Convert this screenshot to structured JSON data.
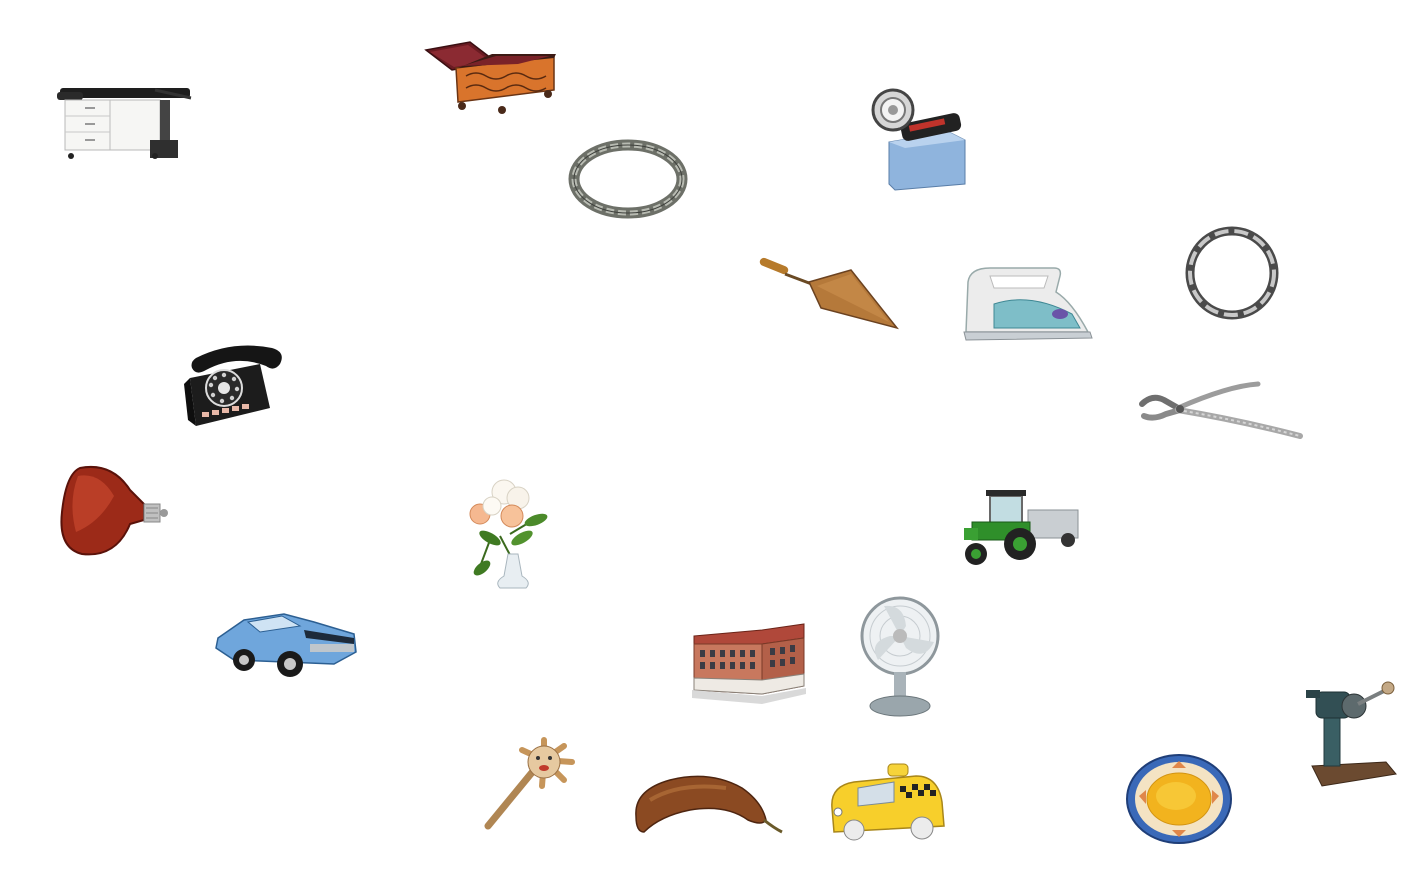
{
  "canvas": {
    "background": "#ffffff"
  },
  "objects": [
    {
      "id": "examination-table",
      "icon": "examination-table-icon"
    },
    {
      "id": "ornate-chest",
      "icon": "ornate-chest-icon"
    },
    {
      "id": "chain-bracelet",
      "icon": "chain-bracelet-icon"
    },
    {
      "id": "slide-projector",
      "icon": "slide-projector-icon"
    },
    {
      "id": "trowel",
      "icon": "trowel-icon"
    },
    {
      "id": "clothes-iron",
      "icon": "clothes-iron-icon"
    },
    {
      "id": "silver-ring-chain",
      "icon": "silver-ring-chain-icon"
    },
    {
      "id": "rotary-telephone",
      "icon": "rotary-telephone-icon"
    },
    {
      "id": "dental-pliers",
      "icon": "dental-pliers-icon"
    },
    {
      "id": "red-heat-lamp-bulb",
      "icon": "red-heat-lamp-bulb-icon"
    },
    {
      "id": "flower-vase",
      "icon": "flower-vase-icon"
    },
    {
      "id": "green-tractor",
      "icon": "green-tractor-icon"
    },
    {
      "id": "blue-muscle-car",
      "icon": "blue-muscle-car-icon"
    },
    {
      "id": "building-model",
      "icon": "building-model-icon"
    },
    {
      "id": "desk-fan",
      "icon": "desk-fan-icon"
    },
    {
      "id": "meat-grinder",
      "icon": "meat-grinder-icon"
    },
    {
      "id": "wooden-rattle",
      "icon": "wooden-rattle-icon"
    },
    {
      "id": "red-banana",
      "icon": "red-banana-icon"
    },
    {
      "id": "yellow-taxi-toy",
      "icon": "yellow-taxi-toy-icon"
    },
    {
      "id": "decorated-plate",
      "icon": "decorated-plate-icon"
    }
  ]
}
